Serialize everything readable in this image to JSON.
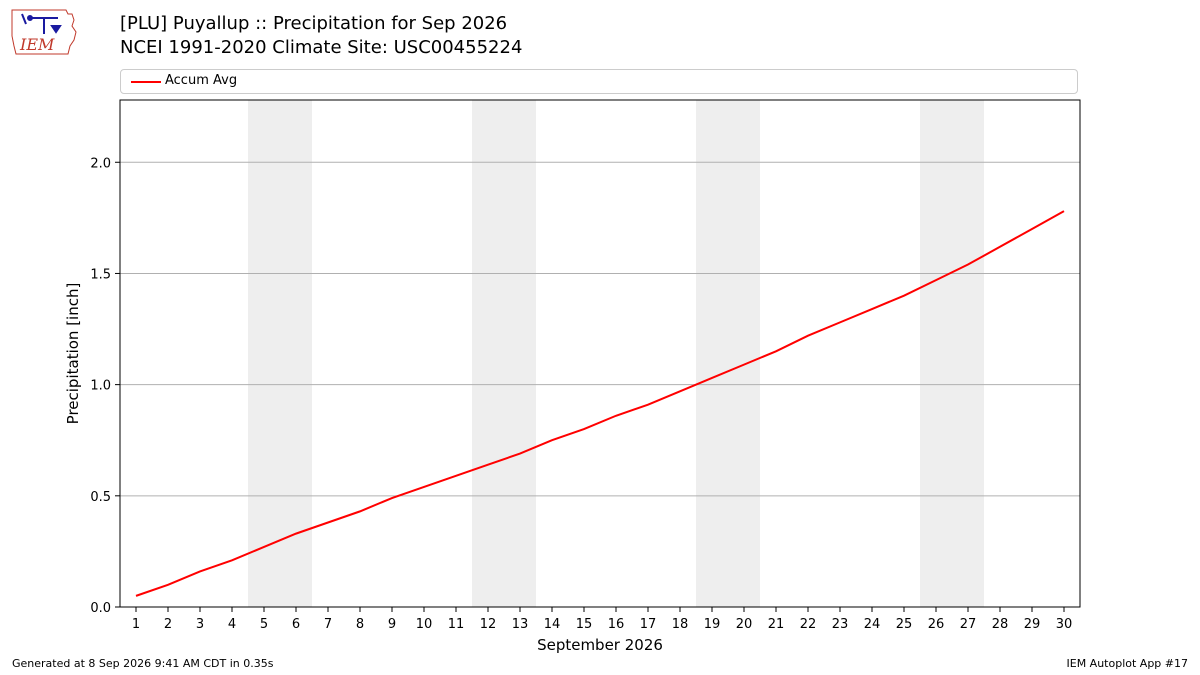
{
  "header": {
    "logo_text": "IEM",
    "title_line1": "[PLU] Puyallup :: Precipitation for Sep 2026",
    "title_line2": "NCEI 1991-2020 Climate Site: USC00455224"
  },
  "footer": {
    "generated": "Generated at 8 Sep 2026 9:41 AM CDT in 0.35s",
    "app": "IEM Autoplot App #17"
  },
  "colors": {
    "line": "#ff0000",
    "weekend_band": "#eeeeee",
    "grid": "#b0b0b0"
  },
  "chart_data": {
    "type": "line",
    "xlabel": "September 2026",
    "ylabel": "Precipitation [inch]",
    "xlim": [
      0.5,
      30.5
    ],
    "ylim": [
      0,
      2.28
    ],
    "yticks": [
      0.0,
      0.5,
      1.0,
      1.5,
      2.0
    ],
    "ytick_labels": [
      "0.0",
      "0.5",
      "1.0",
      "1.5",
      "2.0"
    ],
    "grid": "horizontal",
    "legend_position": "top",
    "weekend_bands": [
      [
        5,
        6
      ],
      [
        12,
        13
      ],
      [
        19,
        20
      ],
      [
        26,
        27
      ]
    ],
    "series": [
      {
        "name": "Accum Avg",
        "x": [
          1,
          2,
          3,
          4,
          5,
          6,
          7,
          8,
          9,
          10,
          11,
          12,
          13,
          14,
          15,
          16,
          17,
          18,
          19,
          20,
          21,
          22,
          23,
          24,
          25,
          26,
          27,
          28,
          29,
          30
        ],
        "values": [
          0.05,
          0.1,
          0.16,
          0.21,
          0.27,
          0.33,
          0.38,
          0.43,
          0.49,
          0.54,
          0.59,
          0.64,
          0.69,
          0.75,
          0.8,
          0.86,
          0.91,
          0.97,
          1.03,
          1.09,
          1.15,
          1.22,
          1.28,
          1.34,
          1.4,
          1.47,
          1.54,
          1.62,
          1.7,
          1.78
        ]
      }
    ]
  }
}
